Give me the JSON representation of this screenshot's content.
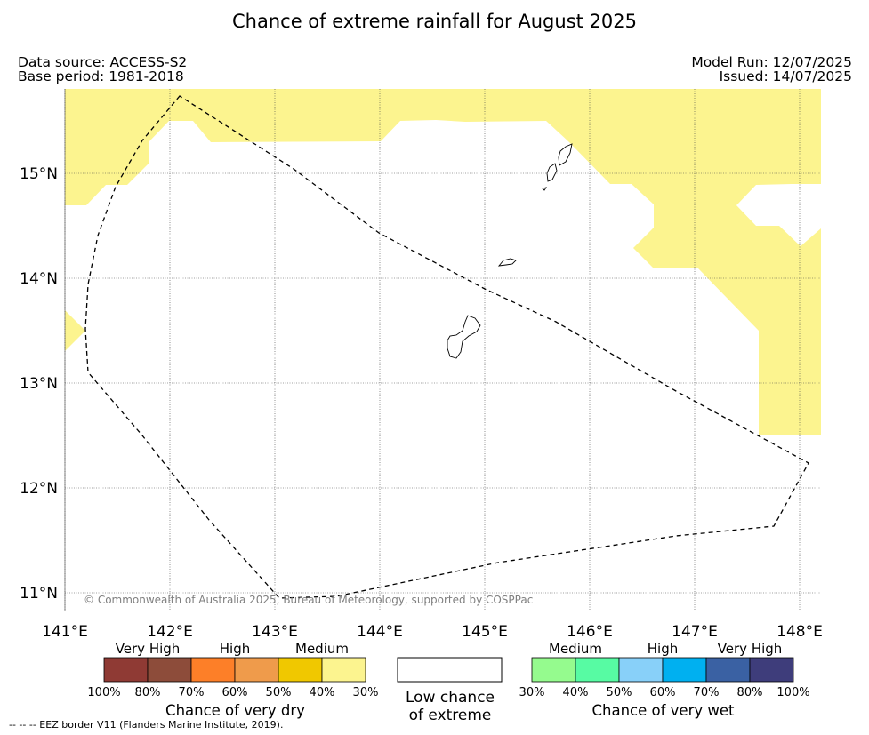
{
  "title": "Chance of extreme rainfall for August 2025",
  "data_source": "Data source: ACCESS-S2",
  "base_period": "Base period: 1981-2018",
  "model_run": "Model Run: 12/07/2025",
  "issued": "Issued: 14/07/2025",
  "copyright": "© Commonwealth of Australia 2025, Bureau of Meteorology, supported by COSPPac",
  "map": {
    "lon_labels": [
      "141°E",
      "142°E",
      "143°E",
      "144°E",
      "145°E",
      "146°E",
      "147°E",
      "148°E"
    ],
    "lat_labels": [
      "15°N",
      "14°N",
      "13°N",
      "12°N",
      "11°N"
    ],
    "fill_color": "#fcf48f",
    "fill_category": "Medium chance of very dry (30%–40%)",
    "eez_line_style": "dashed"
  },
  "legend": {
    "dry": {
      "title": "Chance of very dry",
      "category_labels": [
        "Very High",
        "High",
        "Medium"
      ],
      "colors": [
        "#8f3a34",
        "#8d4c3a",
        "#fd7f28",
        "#ef9b4b",
        "#f0c800",
        "#fcf48f"
      ],
      "ticks": [
        "100%",
        "80%",
        "70%",
        "60%",
        "50%",
        "40%",
        "30%"
      ]
    },
    "low": {
      "line1": "Low chance",
      "line2": "of extreme",
      "color": "#ffffff"
    },
    "wet": {
      "title": "Chance of very wet",
      "category_labels": [
        "Medium",
        "High",
        "Very High"
      ],
      "colors": [
        "#95fb8e",
        "#57fba3",
        "#88d0f9",
        "#00b0f0",
        "#3a61a3",
        "#3e3d7b"
      ],
      "ticks": [
        "30%",
        "40%",
        "50%",
        "60%",
        "70%",
        "80%",
        "100%"
      ]
    }
  },
  "footnote": "--  --  -- EEZ border V11 (Flanders Marine Institute, 2019)."
}
